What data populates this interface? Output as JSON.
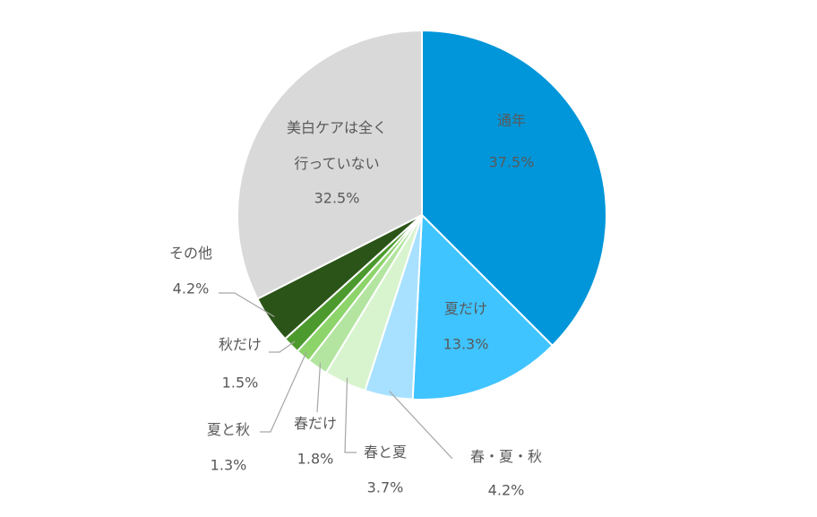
{
  "chart_data": {
    "type": "pie",
    "categories": [
      "通年",
      "夏だけ",
      "春・夏・秋",
      "春と夏",
      "春だけ",
      "夏と秋",
      "秋だけ",
      "その他",
      "美白ケアは全く\n行っていない"
    ],
    "values": [
      37.5,
      13.3,
      4.2,
      3.7,
      1.8,
      1.3,
      1.5,
      4.2,
      32.5
    ],
    "value_labels": [
      "37.5%",
      "13.3%",
      "4.2%",
      "3.7%",
      "1.8%",
      "1.3%",
      "1.5%",
      "4.2%",
      "32.5%"
    ],
    "colors": [
      "#0096d9",
      "#3fc4ff",
      "#a8e1ff",
      "#d8f4cf",
      "#b3e5a0",
      "#8dd46b",
      "#4c9a2e",
      "#2b5418",
      "#d9d9d9"
    ]
  }
}
